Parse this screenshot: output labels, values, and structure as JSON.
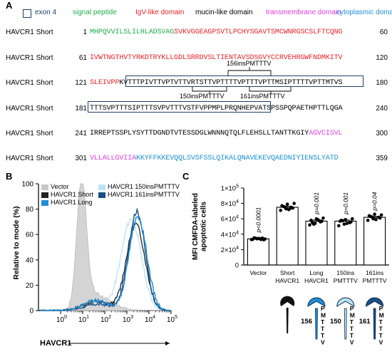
{
  "panelA": {
    "letter": "A",
    "legend": [
      {
        "key": "exon",
        "label": "exon 4",
        "color": "#1f3d66"
      },
      {
        "key": "signal",
        "label": "signal peptide",
        "color": "#1fae4b"
      },
      {
        "key": "igv",
        "label": "IgV-like domain",
        "color": "#e8232a"
      },
      {
        "key": "mucin",
        "label": "mucin-like domain",
        "color": "#000000"
      },
      {
        "key": "tm",
        "label": "transmembrane domain",
        "color": "#e23de3"
      },
      {
        "key": "cyto",
        "label": "cytoplasmic domain",
        "color": "#1c8fd6"
      }
    ],
    "rows": [
      {
        "label": "HAVCR1 Short",
        "start": "1",
        "end": "60",
        "segments": [
          {
            "text": "MHPQVVILSLILHLADSVAG",
            "cls": "c-sig"
          },
          {
            "text": "SVKVGGEAGPSVTLPCHYSGAVTSMCWNRGSCSLFTCQNG",
            "cls": "c-igv"
          }
        ]
      },
      {
        "label": "HAVCR1 Short",
        "start": "61",
        "end": "120",
        "segments": [
          {
            "text": "IVWTNGTHVTYRKDTRYKLLGDLSRRDVSLTIENTAVSDSGVYCCRVEHRGWFNDMKITV",
            "cls": "c-igv"
          }
        ]
      },
      {
        "label": "HAVCR1 Short",
        "start": "121",
        "end": "180",
        "segments": [
          {
            "text": "SLEIVPP",
            "cls": "c-igv"
          },
          {
            "text": "KVTTTPIVTTVPTVTTVRTSTTVPTTTTVPTTTVPTTMSIPTTTTVPTTMTVS",
            "cls": "c-muc"
          }
        ]
      },
      {
        "label": "HAVCR1 Short",
        "start": "181",
        "end": "240",
        "segments": [
          {
            "text": "TTTSVPTTTSIPTTTSVPVTTTVSTFVPPMPLPRQNHEPVATSPSSPQPAETHPTTLQGA",
            "cls": "c-muc"
          }
        ]
      },
      {
        "label": "HAVCR1 Short",
        "start": "241",
        "end": "300",
        "segments": [
          {
            "text": "IRREPTSSPLYSYTTDGNDTVTESSDGLWNNNQTQLFLEHSLLTANTTKGIY",
            "cls": "c-muc"
          },
          {
            "text": "AGVCISVL",
            "cls": "c-tm"
          }
        ]
      },
      {
        "label": "HAVCR1 Short",
        "start": "301",
        "end": "359",
        "segments": [
          {
            "text": "VLLALLGVIIA",
            "cls": "c-tm"
          },
          {
            "text": "KKYFFKKEVQQLSVSFSSLQIKALQNAVEKEVQAEDNIYIENSLYATD",
            "cls": "c-cyto"
          }
        ]
      }
    ],
    "insertions": {
      "top": "156insPMTTTV",
      "bottom_left": "150insPMTTTV",
      "bottom_right": "161insPMTTTV"
    }
  },
  "panelB": {
    "letter": "B",
    "ylabel": "Relative to mode (%)",
    "xlabel": "HAVCR1",
    "legend_left": [
      {
        "label": "Vector",
        "color": "#c8c8c8"
      },
      {
        "label": "HAVCR1 Short",
        "color": "#222222"
      },
      {
        "label": "HAVCR1 Long",
        "color": "#1f8fd8"
      }
    ],
    "legend_right": [
      {
        "label": "HAVCR1 150insPMTTTV",
        "color": "#bde3f7"
      },
      {
        "label": "HAVCR1 161insPMTTTV",
        "color": "#1b4f86"
      }
    ],
    "yticks": [
      "0",
      "20",
      "40",
      "60",
      "80",
      "100"
    ],
    "xtick_labels": [
      {
        "base": "10",
        "exp": "0"
      },
      {
        "base": "10",
        "exp": "1"
      },
      {
        "base": "10",
        "exp": "2"
      },
      {
        "base": "10",
        "exp": "3"
      },
      {
        "base": "10",
        "exp": "4"
      },
      {
        "base": "10",
        "exp": "5"
      }
    ]
  },
  "panelC": {
    "letter": "C",
    "ylabel": [
      "MFI CMFDA-labeled",
      "apoptotic cells"
    ],
    "yticks": [
      {
        "lead": "0"
      },
      {
        "lead": "2×10",
        "exp": "4"
      },
      {
        "lead": "4×10",
        "exp": "4"
      },
      {
        "lead": "6×10",
        "exp": "4"
      },
      {
        "lead": "8×10",
        "exp": "4"
      },
      {
        "lead": "1×10",
        "exp": "5"
      }
    ],
    "pvalues": [
      "p<0.0001",
      "p=0.001",
      "p=0.001",
      "p=0.04"
    ],
    "insert_labels": [
      "156",
      "150",
      "161"
    ],
    "pmtttv_letters": [
      "P",
      "M",
      "T",
      "T",
      "T",
      "V"
    ]
  },
  "chart_data": {
    "type": "bar",
    "categories": [
      "Vector",
      "Short HAVCR1",
      "Long HAVCR1",
      "150ins PMTTTV",
      "161ins PMTTTV"
    ],
    "category_lines": [
      [
        "Vector"
      ],
      [
        "Short",
        "HAVCR1"
      ],
      [
        "Long",
        "HAVCR1"
      ],
      [
        "150ins",
        "PMTTTV"
      ],
      [
        "161ins",
        "PMTTTV"
      ]
    ],
    "values": [
      34000,
      75000,
      57000,
      57000,
      62000
    ],
    "errors": [
      800,
      1500,
      1500,
      1500,
      1200
    ],
    "points": [
      [
        33000,
        34000,
        35000,
        33500,
        34500,
        32800,
        35200,
        34200,
        33800,
        34800,
        33200
      ],
      [
        71000,
        73000,
        75000,
        77000,
        79000,
        74000,
        76000,
        72000,
        80000,
        75500,
        73500
      ],
      [
        52000,
        54000,
        56000,
        58000,
        60000,
        57000,
        55000,
        59000,
        61000,
        53000,
        57500
      ],
      [
        51000,
        53000,
        55000,
        57000,
        59000,
        56000,
        58000,
        54000,
        60000,
        57500
      ],
      [
        58000,
        60000,
        62000,
        64000,
        66000,
        61000,
        63000,
        59000,
        65000,
        62500
      ]
    ],
    "ylim": [
      0,
      100000
    ]
  }
}
